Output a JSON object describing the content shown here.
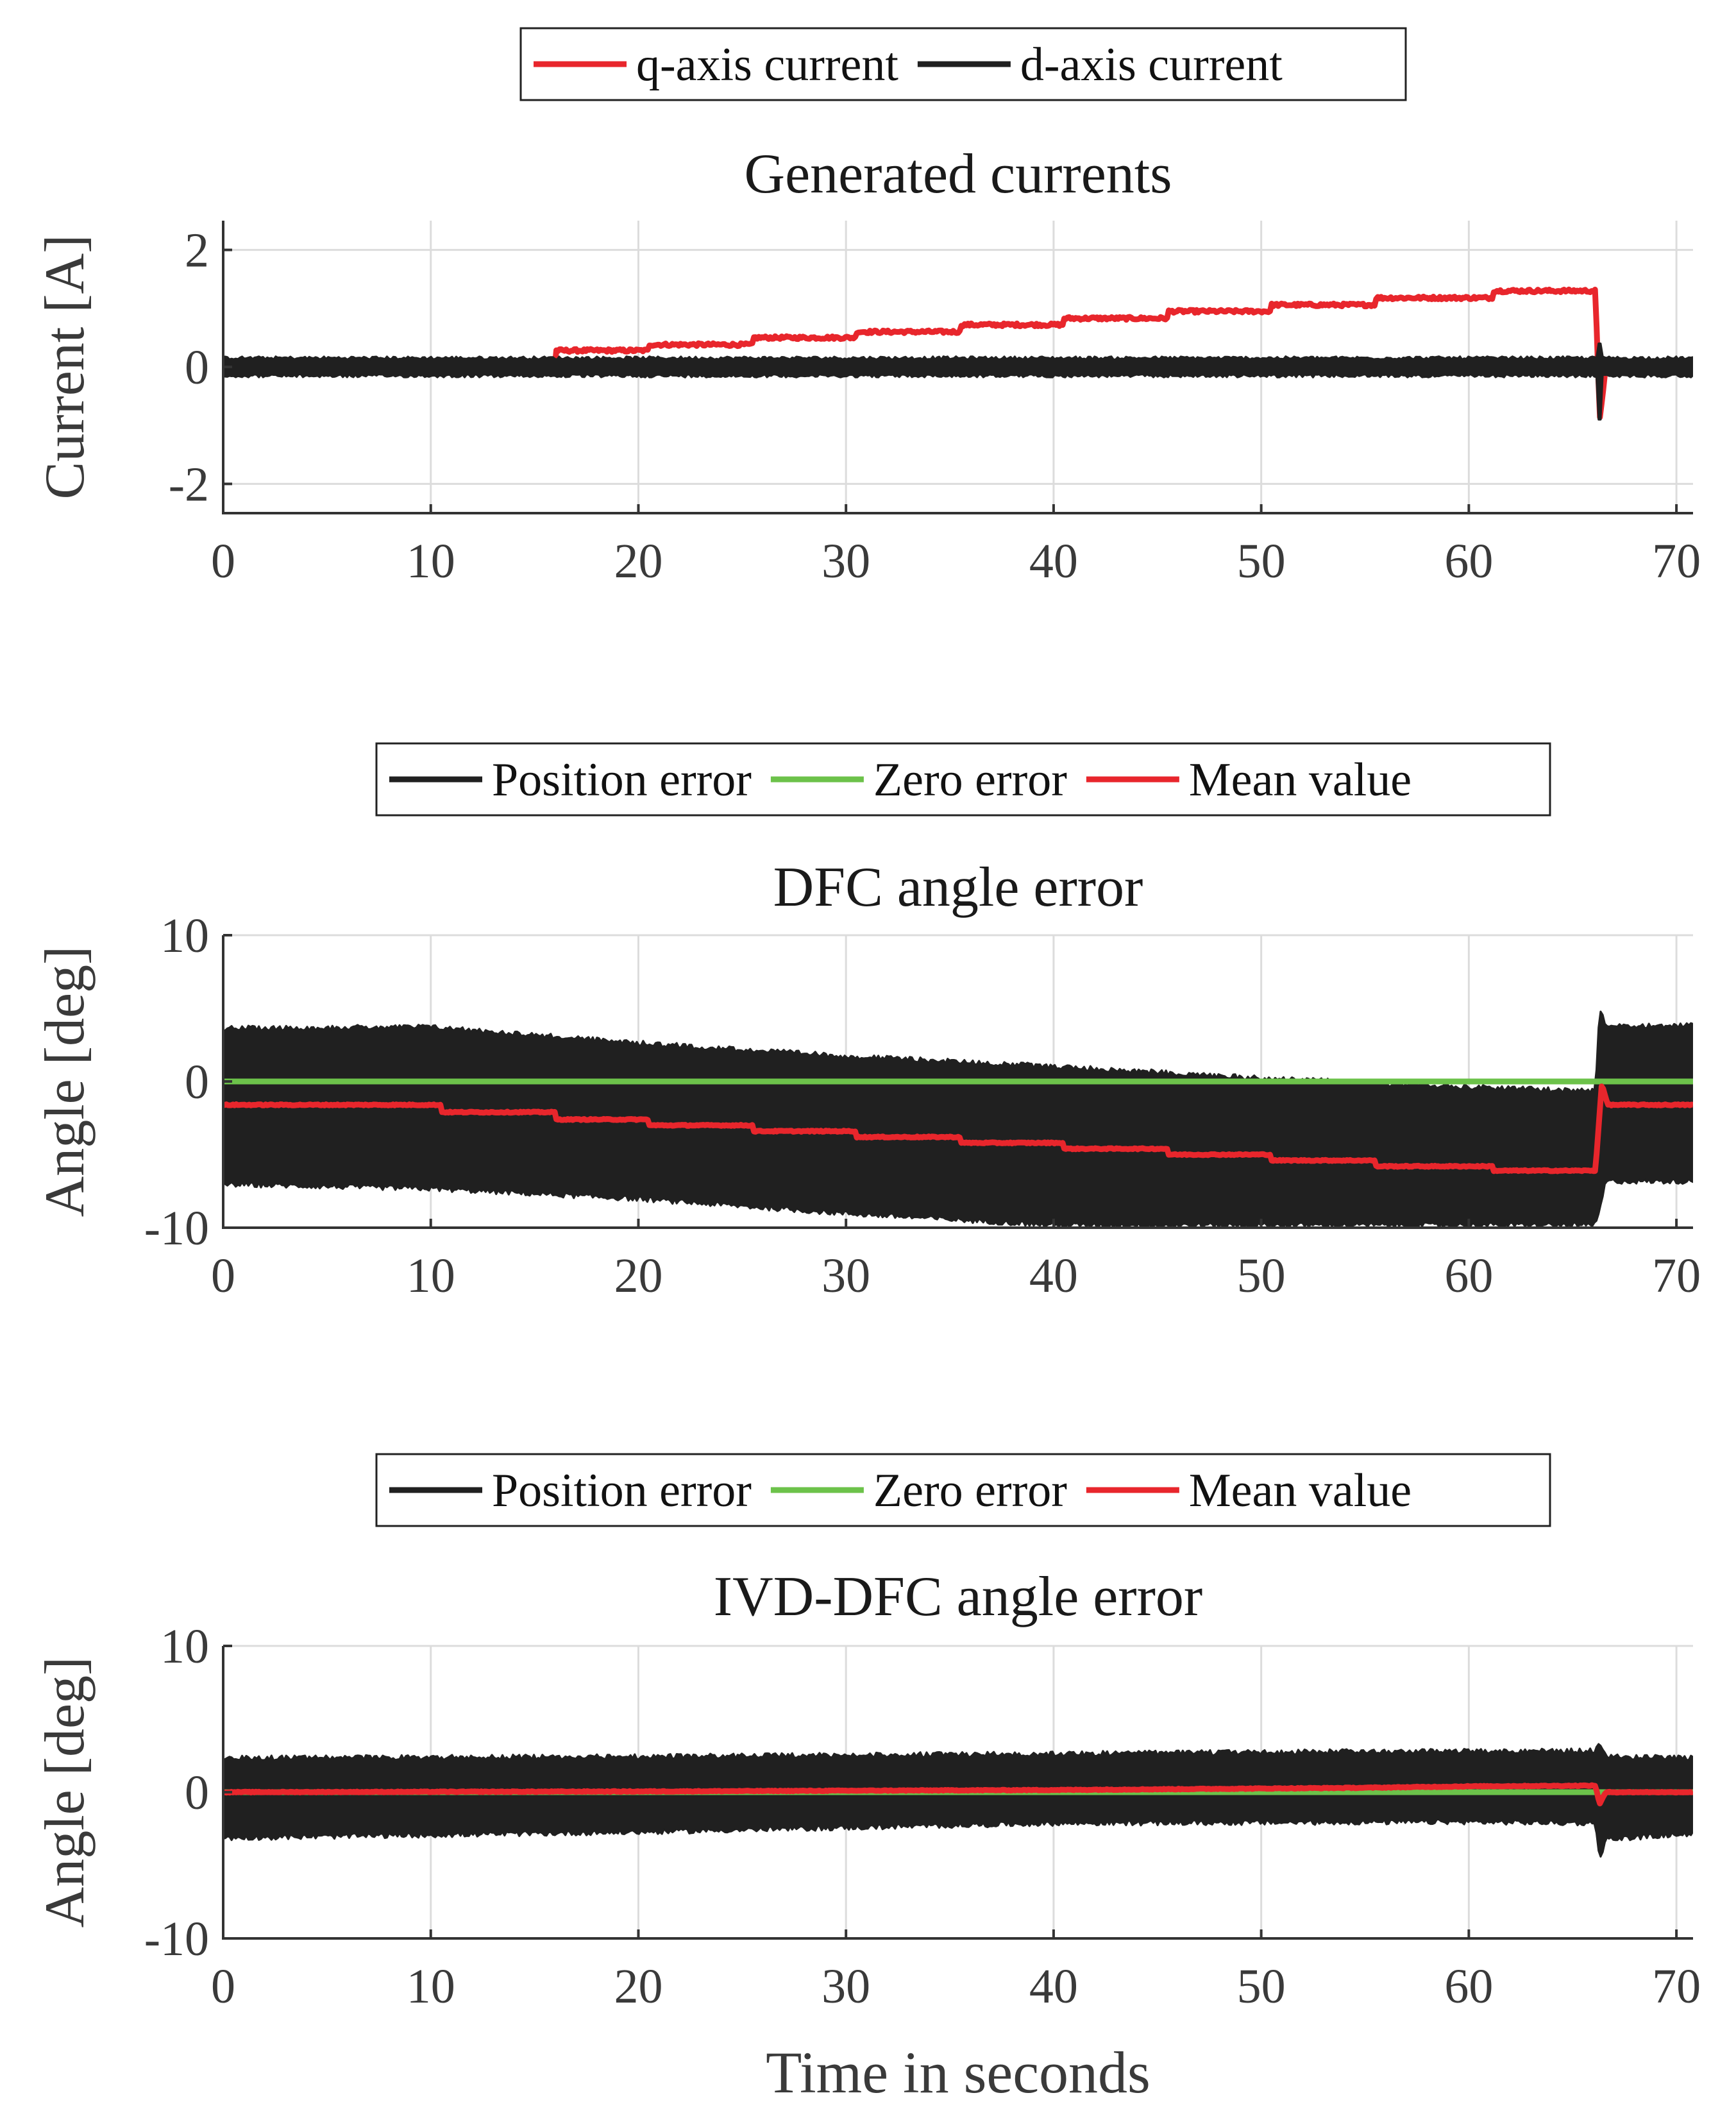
{
  "colors": {
    "red": "#e8262c",
    "black": "#202020",
    "green": "#6cc24a"
  },
  "chart_data": [
    {
      "type": "line",
      "title": "Generated currents",
      "xlabel": "",
      "ylabel": "Current [A]",
      "xlim": [
        0,
        70.8
      ],
      "ylim": [
        -2.5,
        2.5
      ],
      "xticks": [
        0,
        10,
        20,
        30,
        40,
        50,
        60,
        70
      ],
      "yticks": [
        -2,
        0,
        2
      ],
      "xtick_labels": [
        "0",
        "10",
        "20",
        "30",
        "40",
        "50",
        "60",
        "70"
      ],
      "ytick_labels": [
        "-2",
        "0",
        "2"
      ],
      "legend": [
        "q-axis current",
        "d-axis current"
      ],
      "legend_position": "top-center",
      "grid": true,
      "series": [
        {
          "name": "q-axis current",
          "color": "red",
          "kind": "step",
          "noise": 0.05,
          "points": [
            [
              0,
              0
            ],
            [
              16,
              0
            ],
            [
              16,
              0.28
            ],
            [
              20.5,
              0.28
            ],
            [
              20.5,
              0.38
            ],
            [
              25.5,
              0.38
            ],
            [
              25.5,
              0.5
            ],
            [
              30.5,
              0.5
            ],
            [
              30.5,
              0.6
            ],
            [
              35.5,
              0.6
            ],
            [
              35.5,
              0.72
            ],
            [
              40.5,
              0.72
            ],
            [
              40.5,
              0.83
            ],
            [
              45.5,
              0.83
            ],
            [
              45.5,
              0.95
            ],
            [
              50.5,
              0.95
            ],
            [
              50.5,
              1.06
            ],
            [
              55.5,
              1.06
            ],
            [
              55.5,
              1.18
            ],
            [
              61.2,
              1.18
            ],
            [
              61.2,
              1.3
            ],
            [
              66.1,
              1.3
            ],
            [
              66.3,
              -0.9
            ],
            [
              66.6,
              0
            ],
            [
              70.8,
              0
            ]
          ]
        },
        {
          "name": "d-axis current",
          "color": "black",
          "kind": "band",
          "center": 0,
          "amplitude": 0.18,
          "spikes": [
            [
              66.3,
              -0.9,
              0.4
            ]
          ]
        }
      ]
    },
    {
      "type": "line",
      "title": "DFC angle error",
      "xlabel": "",
      "ylabel": "Angle [deg]",
      "xlim": [
        0,
        70.8
      ],
      "ylim": [
        -10,
        10
      ],
      "xticks": [
        0,
        10,
        20,
        30,
        40,
        50,
        60,
        70
      ],
      "yticks": [
        -10,
        0,
        10
      ],
      "xtick_labels": [
        "0",
        "10",
        "20",
        "30",
        "40",
        "50",
        "60",
        "70"
      ],
      "ytick_labels": [
        "-10",
        "0",
        "10"
      ],
      "legend": [
        "Position error",
        "Zero error",
        "Mean value"
      ],
      "legend_position": "top-center",
      "grid": true,
      "series": [
        {
          "name": "Position error",
          "color": "black",
          "kind": "band",
          "upper": [
            [
              0,
              3.8
            ],
            [
              10,
              3.9
            ],
            [
              20,
              2.8
            ],
            [
              30,
              1.9
            ],
            [
              40,
              1.2
            ],
            [
              50,
              0.4
            ],
            [
              60,
              -0.2
            ],
            [
              66.1,
              -0.5
            ],
            [
              66.3,
              5.3
            ],
            [
              66.6,
              4.0
            ],
            [
              70.8,
              4.0
            ]
          ],
          "lower": [
            [
              0,
              -7.2
            ],
            [
              10,
              -7.5
            ],
            [
              20,
              -8.2
            ],
            [
              30,
              -9.2
            ],
            [
              40,
              -10
            ],
            [
              66.1,
              -10
            ],
            [
              66.3,
              -9.0
            ],
            [
              66.6,
              -7.0
            ],
            [
              70.8,
              -7.0
            ]
          ]
        },
        {
          "name": "Zero error",
          "color": "green",
          "kind": "line",
          "points": [
            [
              0,
              0
            ],
            [
              70.8,
              0
            ]
          ]
        },
        {
          "name": "Mean value",
          "color": "red",
          "kind": "step",
          "noise": 0.08,
          "points": [
            [
              0,
              -1.6
            ],
            [
              10.5,
              -1.6
            ],
            [
              10.5,
              -2.1
            ],
            [
              16,
              -2.1
            ],
            [
              16,
              -2.6
            ],
            [
              20.5,
              -2.6
            ],
            [
              20.5,
              -3.0
            ],
            [
              25.5,
              -3.0
            ],
            [
              25.5,
              -3.4
            ],
            [
              30.5,
              -3.4
            ],
            [
              30.5,
              -3.8
            ],
            [
              35.5,
              -3.8
            ],
            [
              35.5,
              -4.2
            ],
            [
              40.5,
              -4.2
            ],
            [
              40.5,
              -4.6
            ],
            [
              45.5,
              -4.6
            ],
            [
              45.5,
              -5.0
            ],
            [
              50.5,
              -5.0
            ],
            [
              50.5,
              -5.4
            ],
            [
              55.5,
              -5.4
            ],
            [
              55.5,
              -5.8
            ],
            [
              61.2,
              -5.8
            ],
            [
              61.2,
              -6.1
            ],
            [
              66.1,
              -6.1
            ],
            [
              66.4,
              -0.2
            ],
            [
              66.7,
              -1.6
            ],
            [
              70.8,
              -1.6
            ]
          ]
        }
      ]
    },
    {
      "type": "line",
      "title": "IVD-DFC angle error",
      "xlabel": "Time in seconds",
      "ylabel": "Angle [deg]",
      "xlim": [
        0,
        70.8
      ],
      "ylim": [
        -10,
        10
      ],
      "xticks": [
        0,
        10,
        20,
        30,
        40,
        50,
        60,
        70
      ],
      "yticks": [
        -10,
        0,
        10
      ],
      "xtick_labels": [
        "0",
        "10",
        "20",
        "30",
        "40",
        "50",
        "60",
        "70"
      ],
      "ytick_labels": [
        "-10",
        "0",
        "10"
      ],
      "legend": [
        "Position error",
        "Zero error",
        "Mean value"
      ],
      "legend_position": "top-center",
      "grid": true,
      "series": [
        {
          "name": "Position error",
          "color": "black",
          "kind": "band",
          "upper": [
            [
              0,
              2.5
            ],
            [
              20,
              2.6
            ],
            [
              40,
              2.8
            ],
            [
              60,
              3.0
            ],
            [
              66.1,
              3.0
            ],
            [
              66.3,
              3.4
            ],
            [
              66.6,
              2.6
            ],
            [
              70.8,
              2.5
            ]
          ],
          "lower": [
            [
              0,
              -3.3
            ],
            [
              20,
              -2.9
            ],
            [
              40,
              -2.3
            ],
            [
              60,
              -2.2
            ],
            [
              66.1,
              -2.3
            ],
            [
              66.3,
              -4.8
            ],
            [
              66.6,
              -3.4
            ],
            [
              70.8,
              -3.0
            ]
          ]
        },
        {
          "name": "Zero error",
          "color": "green",
          "kind": "line",
          "points": [
            [
              0,
              0
            ],
            [
              70.8,
              0
            ]
          ]
        },
        {
          "name": "Mean value",
          "color": "red",
          "kind": "step",
          "noise": 0.06,
          "points": [
            [
              0,
              0
            ],
            [
              20,
              0.05
            ],
            [
              40,
              0.15
            ],
            [
              55,
              0.3
            ],
            [
              60,
              0.4
            ],
            [
              66.1,
              0.45
            ],
            [
              66.3,
              -0.8
            ],
            [
              66.6,
              0
            ],
            [
              70.8,
              0
            ]
          ]
        }
      ]
    }
  ]
}
